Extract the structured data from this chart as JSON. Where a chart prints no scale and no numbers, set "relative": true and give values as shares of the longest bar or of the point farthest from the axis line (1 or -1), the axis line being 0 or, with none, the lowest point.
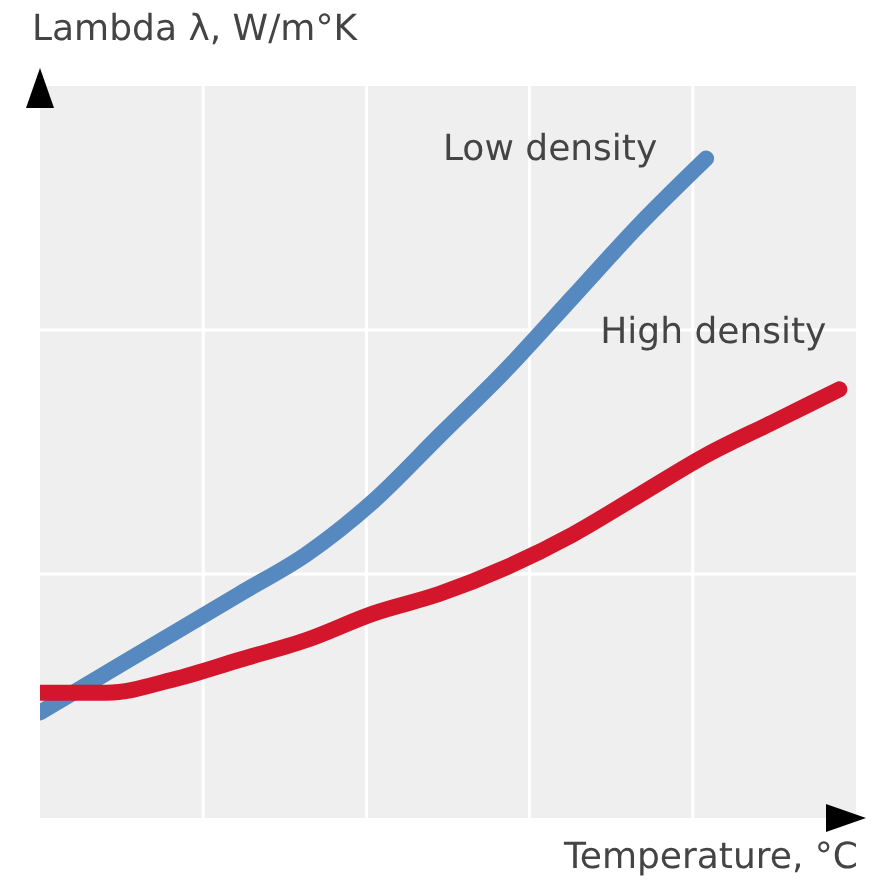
{
  "chart_data": {
    "type": "line",
    "relative": true,
    "xlabel": "Temperature, °C",
    "ylabel": "Lambda λ, W/m°K",
    "categories": [
      null,
      null,
      null,
      null,
      null,
      null,
      null,
      null,
      null,
      null,
      null,
      null,
      null
    ],
    "grid": true,
    "line_style": "solid",
    "marker": "none",
    "series": [
      {
        "name": "Low density",
        "color": "#5589c0",
        "values": [
          0.16,
          0.22,
          0.28,
          0.34,
          0.4,
          0.48,
          0.58,
          0.68,
          0.79,
          0.9,
          1,
          null,
          null
        ]
      },
      {
        "name": "High density",
        "color": "#d4162c",
        "values": [
          0.19,
          0.19,
          0.21,
          0.24,
          0.27,
          0.31,
          0.34,
          0.38,
          0.43,
          0.49,
          0.55,
          0.6,
          0.65
        ]
      }
    ]
  }
}
